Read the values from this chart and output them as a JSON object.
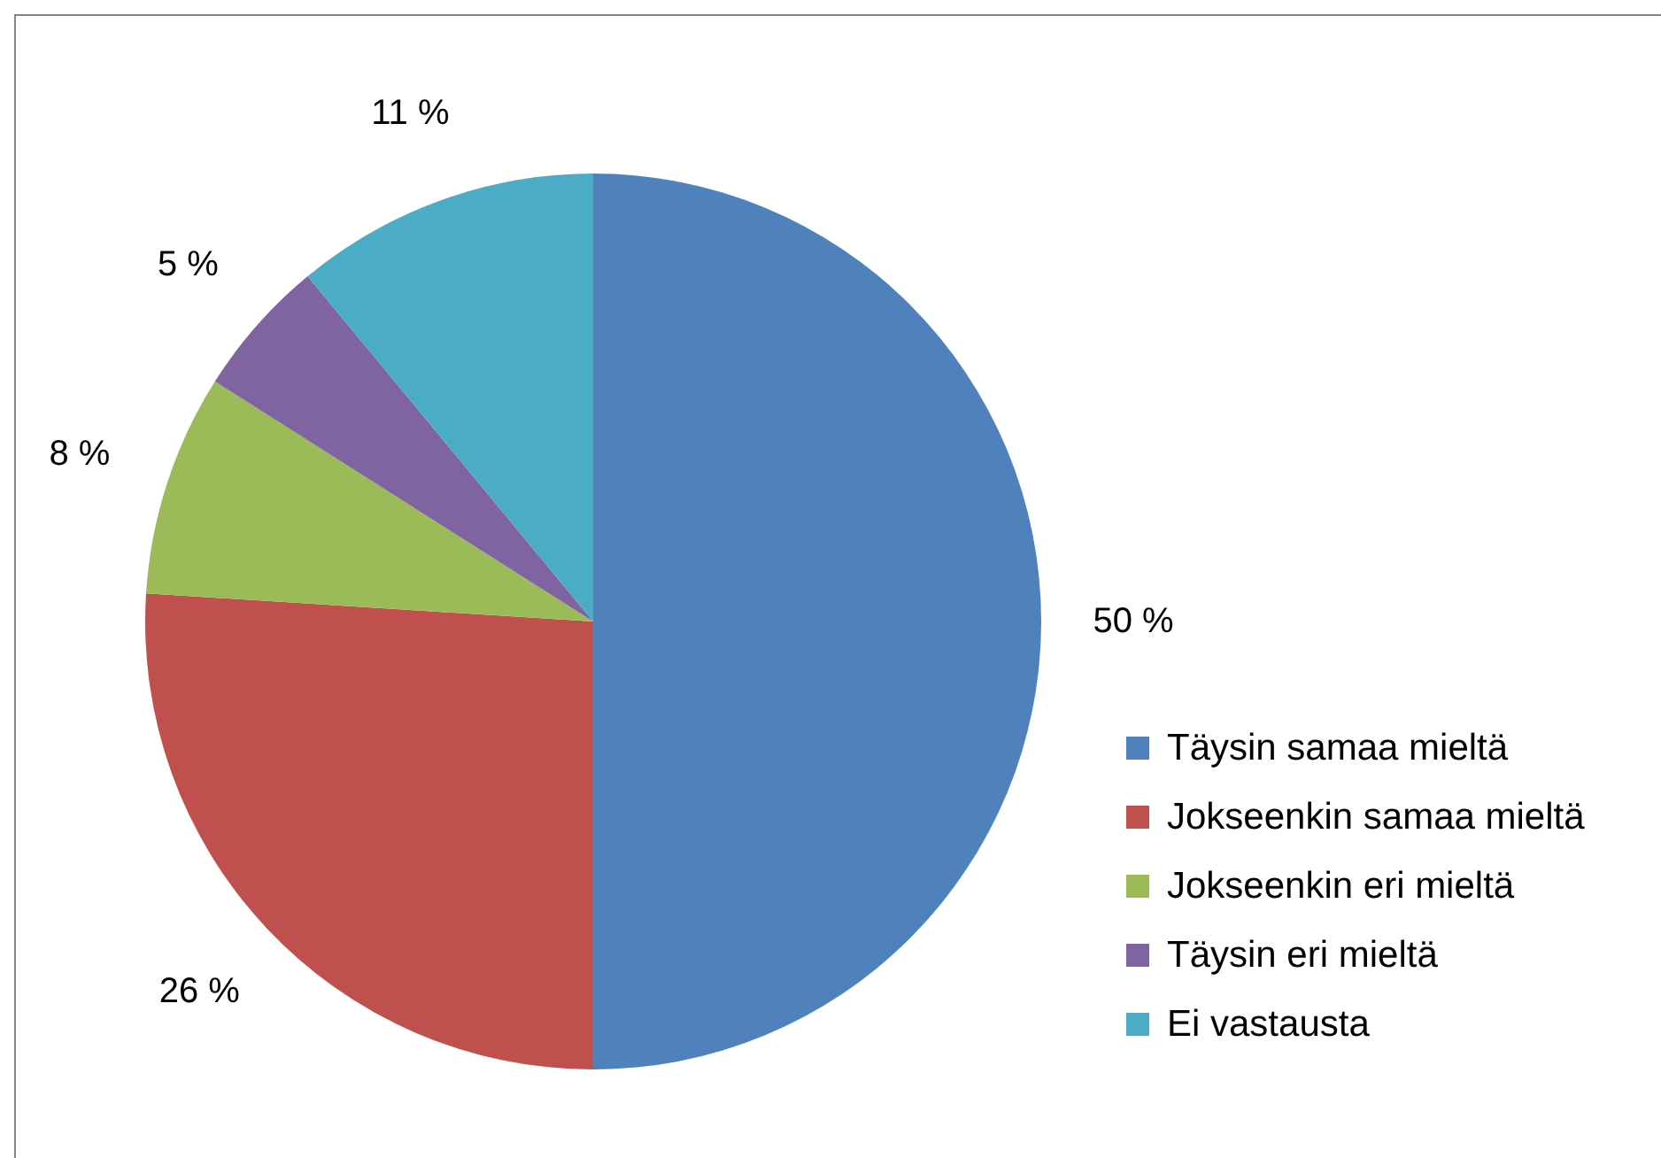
{
  "chart_data": {
    "type": "pie",
    "categories": [
      "Täysin samaa mieltä",
      "Jokseenkin samaa mieltä",
      "Jokseenkin eri mieltä",
      "Täysin eri mieltä",
      "Ei vastausta"
    ],
    "values": [
      50,
      26,
      8,
      5,
      11
    ],
    "colors": [
      "#4f81bd",
      "#c0504d",
      "#9bbb59",
      "#8064a2",
      "#4bacc6"
    ],
    "value_labels": [
      "50 %",
      "26 %",
      "8 %",
      "5 %",
      "11 %"
    ],
    "legend": "right"
  }
}
